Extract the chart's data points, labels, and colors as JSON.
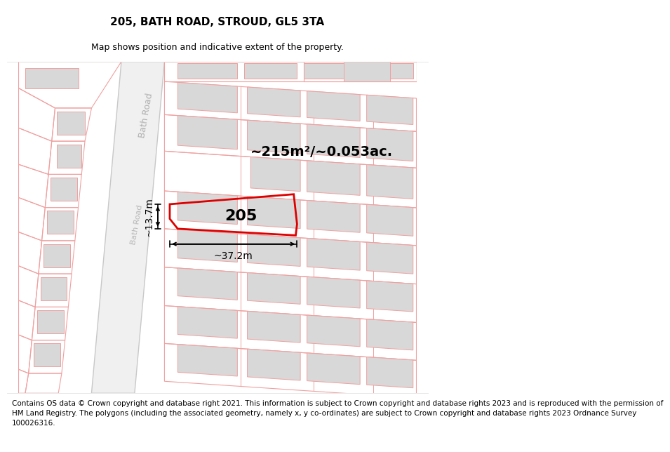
{
  "title": "205, BATH ROAD, STROUD, GL5 3TA",
  "subtitle": "Map shows position and indicative extent of the property.",
  "footer": "Contains OS data © Crown copyright and database right 2021. This information is subject to Crown copyright and database rights 2023 and is reproduced with the permission of\nHM Land Registry. The polygons (including the associated geometry, namely x, y co-ordinates) are subject to Crown copyright and database rights 2023 Ordnance Survey\n100026316.",
  "area_label": "~215m²/~0.053ac.",
  "width_label": "~37.2m",
  "height_label": "~13.7m",
  "number_label": "205",
  "road_label": "Bath Road",
  "bg_color": "#ffffff",
  "map_bg": "#ffffff",
  "red": "#e8000000",
  "light_red": "#f0a0a0",
  "gray_fill": "#d8d8d8",
  "road_outline": "#c8c8c8",
  "title_fontsize": 11,
  "subtitle_fontsize": 9,
  "footer_fontsize": 7.5,
  "area_fontsize": 14,
  "dim_fontsize": 10,
  "number_fontsize": 16,
  "road_label_fontsize": 9
}
